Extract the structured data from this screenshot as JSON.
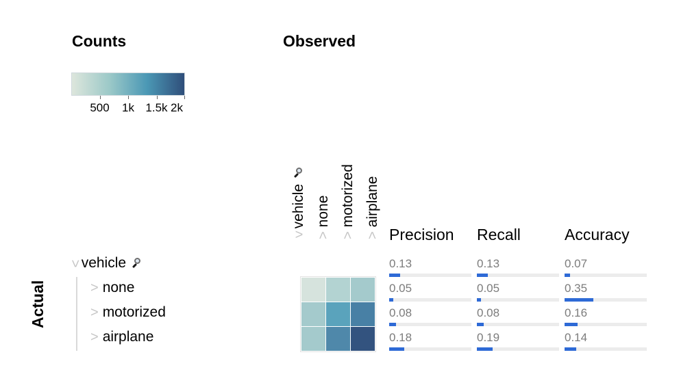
{
  "titles": {
    "counts": "Counts",
    "observed": "Observed",
    "actual": "Actual"
  },
  "legend": {
    "colors": [
      "#dde6dc",
      "#9cc9c8",
      "#4b98b5",
      "#2f4e7a"
    ],
    "ticks": [
      {
        "label": "500",
        "value": 500
      },
      {
        "label": "1k",
        "value": 1000
      },
      {
        "label": "1.5k",
        "value": 1500
      },
      {
        "label": "2k",
        "value": 2000
      }
    ]
  },
  "icons": {
    "collapse": "chevron-down-icon",
    "expand": "chevron-right-icon",
    "zoom": "magnifier-icon"
  },
  "columns": {
    "root": {
      "label": "vehicle"
    },
    "children": [
      {
        "label": "none"
      },
      {
        "label": "motorized"
      },
      {
        "label": "airplane"
      }
    ]
  },
  "rows": {
    "root": {
      "label": "vehicle"
    },
    "children": [
      {
        "label": "none"
      },
      {
        "label": "motorized"
      },
      {
        "label": "airplane"
      }
    ]
  },
  "metrics": {
    "headers": {
      "precision": "Precision",
      "recall": "Recall",
      "accuracy": "Accuracy"
    },
    "rows": [
      {
        "precision": "0.13",
        "recall": "0.13",
        "accuracy": "0.07"
      },
      {
        "precision": "0.05",
        "recall": "0.05",
        "accuracy": "0.35"
      },
      {
        "precision": "0.08",
        "recall": "0.08",
        "accuracy": "0.16"
      },
      {
        "precision": "0.18",
        "recall": "0.19",
        "accuracy": "0.14"
      }
    ]
  },
  "chart_data": {
    "type": "heatmap",
    "x_categories": [
      "none",
      "motorized",
      "airplane"
    ],
    "y_categories": [
      "none",
      "motorized",
      "airplane"
    ],
    "cell_colors": [
      [
        "#d6e3dd",
        "#b3d3d2",
        "#a4cacc"
      ],
      [
        "#a4cacc",
        "#5aa3bc",
        "#4880a5"
      ],
      [
        "#a4cacc",
        "#4f88aa",
        "#33537f"
      ]
    ]
  }
}
